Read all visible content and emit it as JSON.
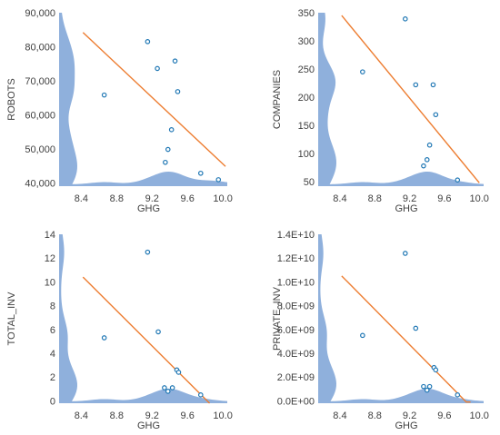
{
  "chart_data": [
    {
      "type": "scatter",
      "xlabel": "GHG",
      "ylabel": "ROBOTS",
      "xlim": [
        8.15,
        10.05
      ],
      "ylim": [
        39000,
        90000
      ],
      "x_ticks": [
        "8.4",
        "8.8",
        "9.2",
        "9.6",
        "10.0"
      ],
      "x_tick_values": [
        8.4,
        8.8,
        9.2,
        9.6,
        10.0
      ],
      "y_ticks": [
        "40,000",
        "50,000",
        "60,000",
        "70,000",
        "80,000",
        "90,000"
      ],
      "y_tick_values": [
        40000,
        50000,
        60000,
        70000,
        80000,
        90000
      ],
      "points": [
        {
          "x": 8.66,
          "y": 65800
        },
        {
          "x": 9.15,
          "y": 81500
        },
        {
          "x": 9.26,
          "y": 73600
        },
        {
          "x": 9.46,
          "y": 75800
        },
        {
          "x": 9.49,
          "y": 66800
        },
        {
          "x": 9.42,
          "y": 55600
        },
        {
          "x": 9.38,
          "y": 49800
        },
        {
          "x": 9.35,
          "y": 46000
        },
        {
          "x": 9.75,
          "y": 42800
        },
        {
          "x": 9.95,
          "y": 40900
        }
      ],
      "fit_line": [
        {
          "x": 8.42,
          "y": 84200
        },
        {
          "x": 10.03,
          "y": 44800
        }
      ],
      "series_color": "#1f77b4",
      "fit_color": "#ed7d31",
      "density_color": "#8fb0dc",
      "grid": false
    },
    {
      "type": "scatter",
      "xlabel": "GHG",
      "ylabel": "COMPANIES",
      "xlim": [
        8.15,
        10.05
      ],
      "ylim": [
        42,
        350
      ],
      "x_ticks": [
        "8.4",
        "8.8",
        "9.2",
        "9.6",
        "10.0"
      ],
      "x_tick_values": [
        8.4,
        8.8,
        9.2,
        9.6,
        10.0
      ],
      "y_ticks": [
        "50",
        "100",
        "150",
        "200",
        "250",
        "300",
        "350"
      ],
      "y_tick_values": [
        50,
        100,
        150,
        200,
        250,
        300,
        350
      ],
      "points": [
        {
          "x": 8.66,
          "y": 245
        },
        {
          "x": 9.15,
          "y": 339
        },
        {
          "x": 9.27,
          "y": 222
        },
        {
          "x": 9.47,
          "y": 222
        },
        {
          "x": 9.5,
          "y": 169
        },
        {
          "x": 9.43,
          "y": 115
        },
        {
          "x": 9.4,
          "y": 89
        },
        {
          "x": 9.36,
          "y": 78
        },
        {
          "x": 9.75,
          "y": 53
        }
      ],
      "fit_line": [
        {
          "x": 8.42,
          "y": 345
        },
        {
          "x": 10.0,
          "y": 48
        }
      ],
      "series_color": "#1f77b4",
      "fit_color": "#ed7d31",
      "density_color": "#8fb0dc",
      "grid": false
    },
    {
      "type": "scatter",
      "xlabel": "GHG",
      "ylabel": "TOTAL_INV",
      "xlim": [
        8.15,
        10.05
      ],
      "ylim": [
        -0.2,
        14
      ],
      "x_ticks": [
        "8.4",
        "8.8",
        "9.2",
        "9.6",
        "10.0"
      ],
      "x_tick_values": [
        8.4,
        8.8,
        9.2,
        9.6,
        10.0
      ],
      "y_ticks": [
        "0",
        "2",
        "4",
        "6",
        "8",
        "10",
        "12",
        "14"
      ],
      "y_tick_values": [
        0,
        2,
        4,
        6,
        8,
        10,
        12,
        14
      ],
      "points": [
        {
          "x": 8.66,
          "y": 5.3
        },
        {
          "x": 9.15,
          "y": 12.5
        },
        {
          "x": 9.27,
          "y": 5.8
        },
        {
          "x": 9.48,
          "y": 2.6
        },
        {
          "x": 9.5,
          "y": 2.4
        },
        {
          "x": 9.34,
          "y": 1.1
        },
        {
          "x": 9.38,
          "y": 0.8
        },
        {
          "x": 9.43,
          "y": 1.1
        },
        {
          "x": 9.75,
          "y": 0.5
        }
      ],
      "fit_line": [
        {
          "x": 8.42,
          "y": 10.4
        },
        {
          "x": 9.85,
          "y": -0.2
        }
      ],
      "series_color": "#1f77b4",
      "fit_color": "#ed7d31",
      "density_color": "#8fb0dc",
      "grid": false
    },
    {
      "type": "scatter",
      "xlabel": "GHG",
      "ylabel": "PRIVATE_INV",
      "xlim": [
        8.15,
        10.05
      ],
      "ylim": [
        -200000000.0,
        14000000000.0
      ],
      "x_ticks": [
        "8.4",
        "8.8",
        "9.2",
        "9.6",
        "10.0"
      ],
      "x_tick_values": [
        8.4,
        8.8,
        9.2,
        9.6,
        10.0
      ],
      "y_ticks": [
        "0.0E+00",
        "2.0E+09",
        "4.0E+09",
        "6.0E+09",
        "8.0E+09",
        "1.0E+10",
        "1.2E+10",
        "1.4E+10"
      ],
      "y_tick_values": [
        0,
        2000000000.0,
        4000000000.0,
        6000000000.0,
        8000000000.0,
        10000000000.0,
        12000000000.0,
        14000000000.0
      ],
      "points": [
        {
          "x": 8.66,
          "y": 5500000000.0
        },
        {
          "x": 9.15,
          "y": 12400000000.0
        },
        {
          "x": 9.27,
          "y": 6100000000.0
        },
        {
          "x": 9.48,
          "y": 2800000000.0
        },
        {
          "x": 9.5,
          "y": 2600000000.0
        },
        {
          "x": 9.36,
          "y": 1200000000.0
        },
        {
          "x": 9.4,
          "y": 900000000.0
        },
        {
          "x": 9.43,
          "y": 1200000000.0
        },
        {
          "x": 9.75,
          "y": 500000000.0
        }
      ],
      "fit_line": [
        {
          "x": 8.42,
          "y": 10500000000.0
        },
        {
          "x": 9.85,
          "y": -100000000.0
        },
        {
          "x": 9.9,
          "y": -100000000.0
        }
      ],
      "series_color": "#1f77b4",
      "fit_color": "#ed7d31",
      "density_color": "#8fb0dc",
      "grid": false
    }
  ]
}
